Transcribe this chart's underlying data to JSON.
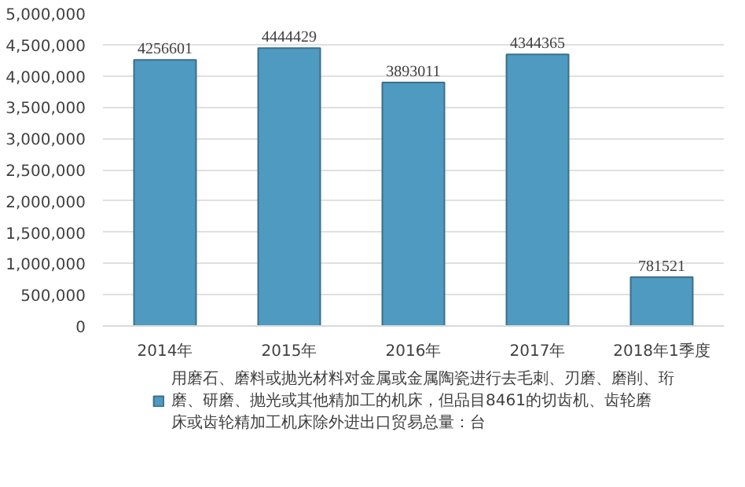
{
  "chart_data": {
    "type": "bar",
    "categories": [
      "2014年",
      "2015年",
      "2016年",
      "2017年",
      "2018年1季度"
    ],
    "series": [
      {
        "name": "用磨石、磨料或抛光材料对金属或金属陶瓷进行去毛刺、刃磨、磨削、珩磨、研磨、抛光或其他精加工的机床，但品目8461的切齿机、齿轮磨床或齿轮精加工机床除外进出口贸易总量：台",
        "color": "#4f9ac0",
        "values": [
          4256601,
          4444429,
          3893011,
          4344365,
          781521
        ]
      }
    ],
    "ylim": [
      0,
      5000000
    ],
    "yticks": [
      {
        "value": 0,
        "label": "0"
      },
      {
        "value": 500000,
        "label": "500,000"
      },
      {
        "value": 1000000,
        "label": "1,000,000"
      },
      {
        "value": 1500000,
        "label": "1,500,000"
      },
      {
        "value": 2000000,
        "label": "2,000,000"
      },
      {
        "value": 2500000,
        "label": "2,500,000"
      },
      {
        "value": 3000000,
        "label": "3,000,000"
      },
      {
        "value": 3500000,
        "label": "3,500,000"
      },
      {
        "value": 4000000,
        "label": "4,000,000"
      },
      {
        "value": 4500000,
        "label": "4,500,000"
      },
      {
        "value": 5000000,
        "label": "5,000,000"
      }
    ],
    "grid": "y",
    "legend": "bottom",
    "data_labels": true
  }
}
